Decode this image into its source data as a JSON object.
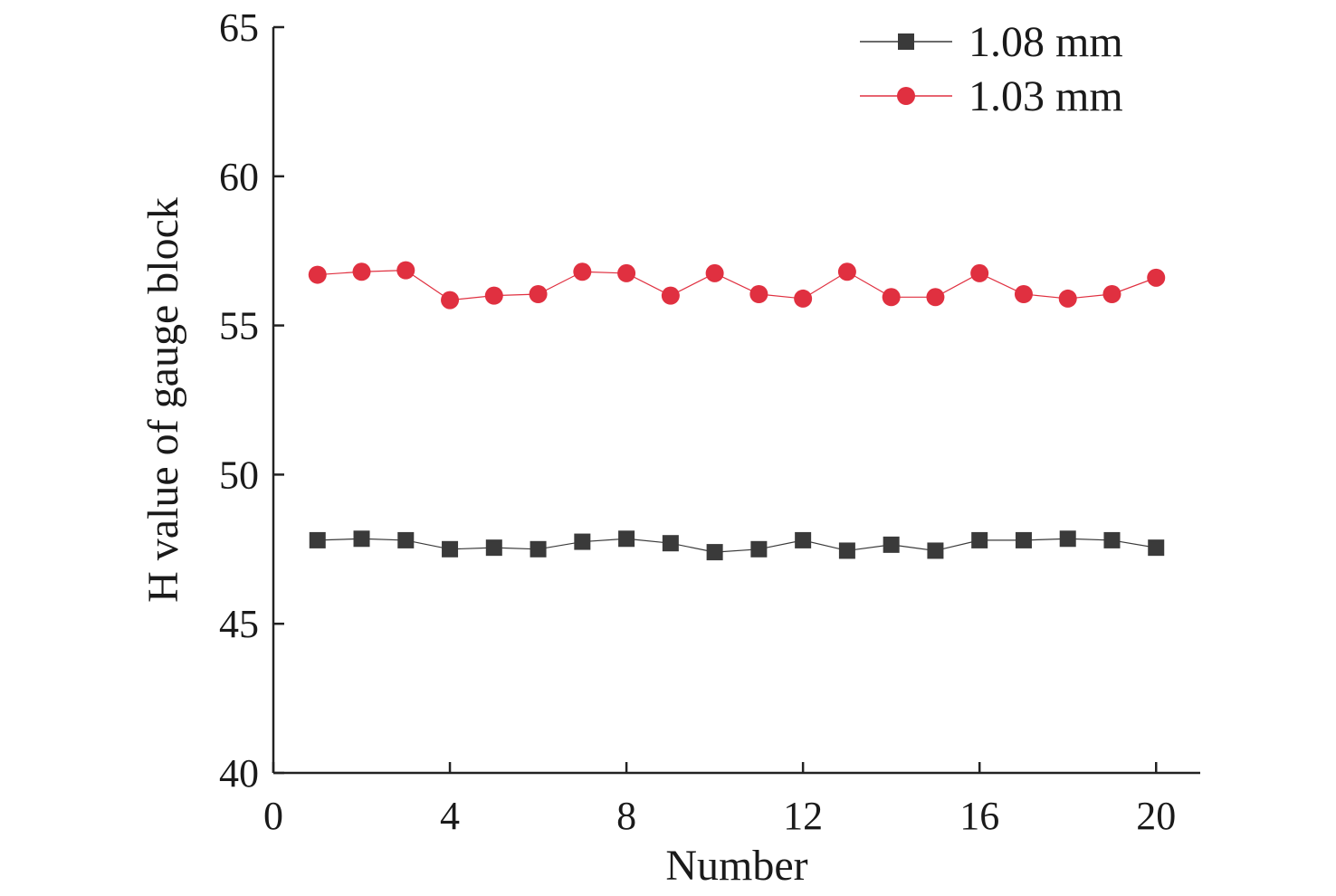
{
  "chart_data": {
    "type": "line",
    "xlabel": "Number",
    "ylabel": "H value of gauge block",
    "xlim": [
      0,
      21
    ],
    "ylim": [
      40,
      65
    ],
    "xticks": [
      0,
      4,
      8,
      12,
      16,
      20
    ],
    "yticks": [
      40,
      45,
      50,
      55,
      60,
      65
    ],
    "grid": false,
    "legend_position": "top-right",
    "x": [
      1,
      2,
      3,
      4,
      5,
      6,
      7,
      8,
      9,
      10,
      11,
      12,
      13,
      14,
      15,
      16,
      17,
      18,
      19,
      20
    ],
    "series": [
      {
        "name": "1.08 mm",
        "marker": "square",
        "color": "#3a3a3a",
        "values": [
          47.8,
          47.85,
          47.8,
          47.5,
          47.55,
          47.5,
          47.75,
          47.85,
          47.7,
          47.4,
          47.5,
          47.8,
          47.45,
          47.65,
          47.45,
          47.8,
          47.8,
          47.85,
          47.8,
          47.55
        ]
      },
      {
        "name": "1.03 mm",
        "marker": "circle",
        "color": "#e03040",
        "values": [
          56.7,
          56.8,
          56.85,
          55.85,
          56.0,
          56.05,
          56.8,
          56.75,
          56.0,
          56.75,
          56.05,
          55.9,
          56.8,
          55.95,
          55.95,
          56.75,
          56.05,
          55.9,
          56.05,
          56.6
        ]
      }
    ]
  }
}
